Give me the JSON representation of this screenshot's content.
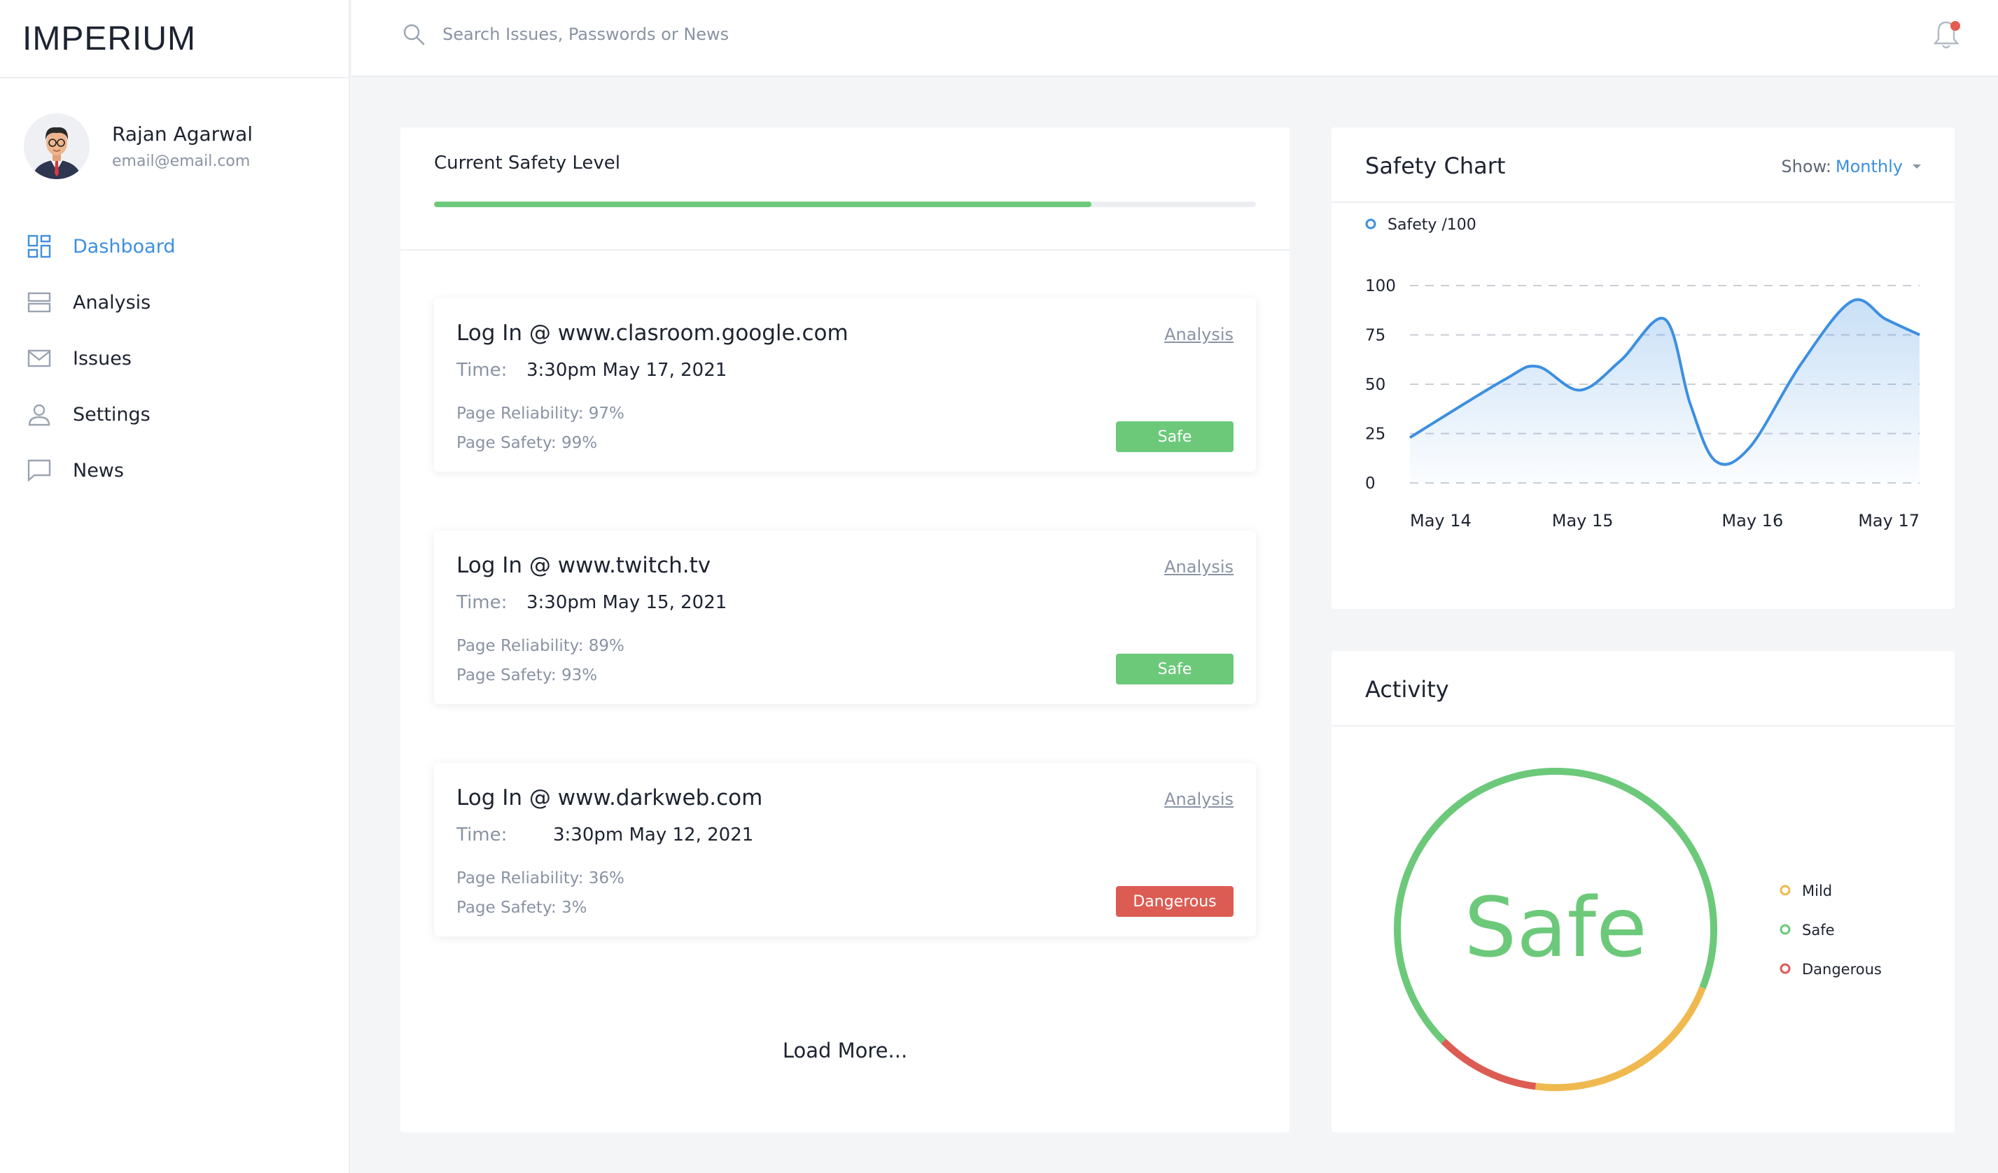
{
  "app": {
    "brand": "IMPERIUM"
  },
  "profile": {
    "name": "Rajan Agarwal",
    "email": "email@email.com"
  },
  "sidebar": {
    "items": [
      {
        "label": "Dashboard",
        "icon": "dashboard-icon",
        "active": true
      },
      {
        "label": "Analysis",
        "icon": "analysis-icon",
        "active": false
      },
      {
        "label": "Issues",
        "icon": "mail-icon",
        "active": false
      },
      {
        "label": "Settings",
        "icon": "user-icon",
        "active": false
      },
      {
        "label": "News",
        "icon": "chat-icon",
        "active": false
      }
    ]
  },
  "search": {
    "placeholder": "Search Issues, Passwords or News",
    "value": ""
  },
  "colors": {
    "accent": "#3d8fe0",
    "safe": "#6cc97a",
    "mild": "#f0b94f",
    "danger": "#dc5c53"
  },
  "safety_level": {
    "title": "Current Safety Level",
    "progress": 0.8
  },
  "logs": [
    {
      "title": "Log In @ www.clasroom.google.com",
      "analysis": "Analysis",
      "time_label": "Time:",
      "time": "3:30pm May 17, 2021",
      "reliability": "Page Reliability: 97%",
      "safety": "Page Safety: 99%",
      "status": "Safe",
      "status_color": "#6cc97a"
    },
    {
      "title": "Log In @ www.twitch.tv",
      "analysis": "Analysis",
      "time_label": "Time:",
      "time": "3:30pm May 15, 2021",
      "reliability": "Page Reliability: 89%",
      "safety": "Page Safety: 93%",
      "status": "Safe",
      "status_color": "#6cc97a"
    },
    {
      "title": "Log In @ www.darkweb.com",
      "analysis": "Analysis",
      "time_label": "Time:",
      "time": "3:30pm May 12, 2021",
      "reliability": "Page Reliability: 36%",
      "safety": "Page Safety: 3%",
      "status": "Dangerous",
      "status_color": "#dc5c53"
    }
  ],
  "load_more": "Load More...",
  "safety_chart": {
    "title": "Safety Chart",
    "show_label": "Show:",
    "show_value": "Monthly"
  },
  "chart_data": {
    "type": "area",
    "title": "Safety Chart",
    "legend": "Safety /100",
    "categories": [
      "May 14",
      "May 15",
      "May 16",
      "May 17"
    ],
    "yticks": [
      100,
      75,
      50,
      25,
      0
    ],
    "ylim": [
      0,
      100
    ],
    "x": [
      0,
      0.55,
      0.75,
      1.0,
      1.24,
      1.5,
      1.65,
      1.8,
      2.0,
      2.3,
      2.6,
      2.8,
      3.0
    ],
    "series": [
      {
        "name": "Safety /100",
        "values": [
          23,
          52,
          59,
          47,
          62,
          83,
          40,
          11,
          18,
          60,
          92,
          83,
          75
        ]
      }
    ],
    "grid": true,
    "legend_position": "top-left"
  },
  "activity": {
    "title": "Activity",
    "status": "Safe",
    "segments": [
      {
        "label": "Safe",
        "fraction": 0.685,
        "color": "#6cc97a"
      },
      {
        "label": "Mild",
        "fraction": 0.21,
        "color": "#f0b94f"
      },
      {
        "label": "Dangerous",
        "fraction": 0.105,
        "color": "#dc5c53"
      }
    ],
    "legend": [
      {
        "label": "Mild",
        "color": "#f0b94f"
      },
      {
        "label": "Safe",
        "color": "#6cc97a"
      },
      {
        "label": "Dangerous",
        "color": "#dc5c53"
      }
    ]
  }
}
